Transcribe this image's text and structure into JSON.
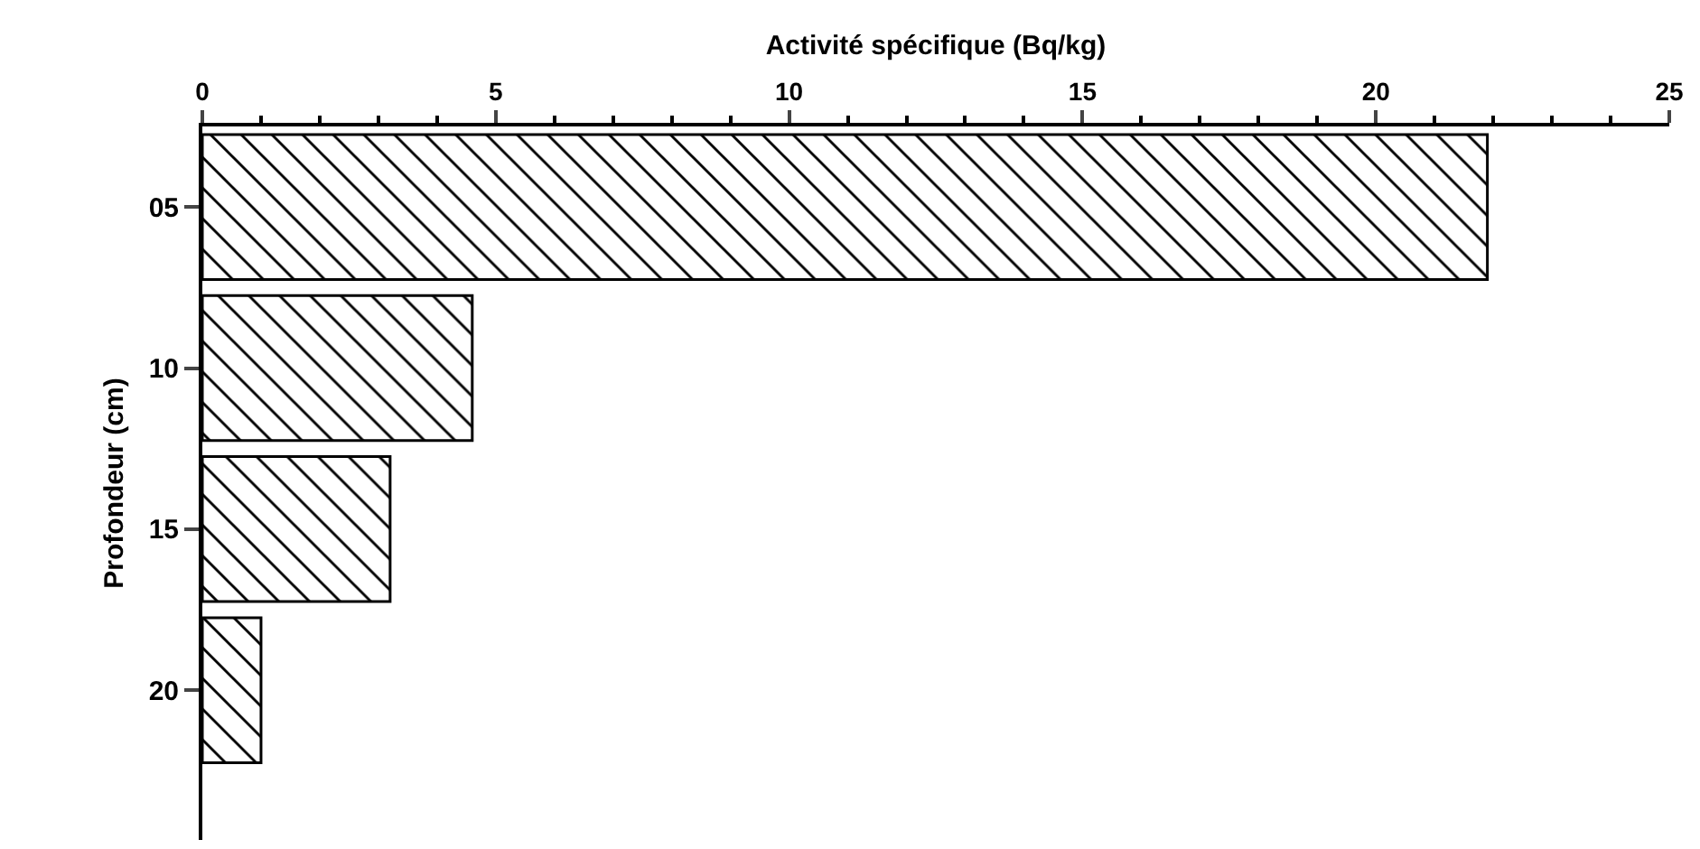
{
  "chart_data": {
    "type": "bar",
    "orientation": "horizontal",
    "xlabel": "Activité spécifique (Bq/kg)",
    "ylabel": "Profondeur (cm)",
    "categories": [
      "05",
      "10",
      "15",
      "20"
    ],
    "values": [
      21.9,
      4.6,
      3.2,
      1.0
    ],
    "color": "#000000",
    "xlim": [
      0,
      25
    ],
    "xticks": [
      0,
      5,
      10,
      15,
      20,
      25
    ],
    "grid": false
  }
}
